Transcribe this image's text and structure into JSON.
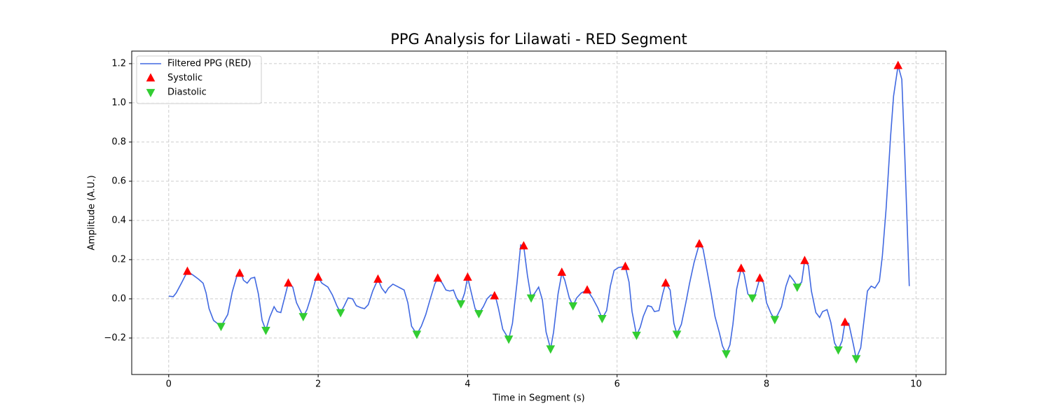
{
  "chart_data": {
    "type": "line",
    "title": "PPG Analysis for Lilawati - RED Segment",
    "x_label": "Time in Segment (s)",
    "y_label": "Amplitude (A.U.)",
    "xlim": [
      -0.495,
      10.4
    ],
    "ylim": [
      -0.386,
      1.264
    ],
    "xticks": [
      0,
      2,
      4,
      6,
      8,
      10
    ],
    "yticks": [
      {
        "value": -0.2,
        "label": "−0.2"
      },
      {
        "value": 0,
        "label": "0.0"
      },
      0.2,
      0.4,
      0.6,
      0.8,
      {
        "value": 1,
        "label": "1.0"
      },
      1.2
    ],
    "grid": true,
    "legend": "upper left",
    "series": [
      {
        "name": "Filtered PPG (RED)",
        "color": "#4169e1",
        "type": "line",
        "x": [
          0,
          0.06,
          0.1,
          0.17,
          0.25,
          0.33,
          0.4,
          0.46,
          0.5,
          0.54,
          0.6,
          0.7,
          0.79,
          0.85,
          0.91,
          0.97,
          1.0,
          1.05,
          1.1,
          1.15,
          1.2,
          1.25,
          1.3,
          1.35,
          1.41,
          1.45,
          1.5,
          1.55,
          1.6,
          1.66,
          1.71,
          1.8,
          1.85,
          1.9,
          1.96,
          2.0,
          2.05,
          2.13,
          2.19,
          2.25,
          2.3,
          2.35,
          2.4,
          2.46,
          2.51,
          2.57,
          2.62,
          2.67,
          2.73,
          2.8,
          2.85,
          2.9,
          2.94,
          3.0,
          3.05,
          3.1,
          3.15,
          3.2,
          3.25,
          3.32,
          3.38,
          3.44,
          3.5,
          3.56,
          3.6,
          3.66,
          3.71,
          3.76,
          3.81,
          3.85,
          3.91,
          3.96,
          4.0,
          4.05,
          4.1,
          4.15,
          4.21,
          4.26,
          4.31,
          4.37,
          4.41,
          4.47,
          4.55,
          4.6,
          4.66,
          4.71,
          4.75,
          4.8,
          4.85,
          4.9,
          4.95,
          5.0,
          5.05,
          5.11,
          5.15,
          5.21,
          5.26,
          5.3,
          5.36,
          5.41,
          5.46,
          5.52,
          5.6,
          5.67,
          5.74,
          5.8,
          5.86,
          5.91,
          5.96,
          6.02,
          6.11,
          6.16,
          6.2,
          6.26,
          6.31,
          6.35,
          6.41,
          6.46,
          6.5,
          6.56,
          6.61,
          6.65,
          6.71,
          6.76,
          6.8,
          6.86,
          6.92,
          6.97,
          7.03,
          7.1,
          7.15,
          7.21,
          7.26,
          7.31,
          7.37,
          7.41,
          7.46,
          7.51,
          7.55,
          7.6,
          7.66,
          7.7,
          7.75,
          7.81,
          7.85,
          7.91,
          7.96,
          8.0,
          8.06,
          8.11,
          8.15,
          8.2,
          8.26,
          8.31,
          8.36,
          8.41,
          8.47,
          8.51,
          8.56,
          8.6,
          8.66,
          8.71,
          8.75,
          8.81,
          8.86,
          8.91,
          8.96,
          9.01,
          9.05,
          9.1,
          9.16,
          9.2,
          9.26,
          9.31,
          9.35,
          9.4,
          9.45,
          9.51,
          9.55,
          9.6,
          9.66,
          9.7,
          9.76,
          9.81,
          9.85,
          9.91
        ],
        "values": [
          0.014,
          0.011,
          0.03,
          0.08,
          0.14,
          0.12,
          0.1,
          0.08,
          0.03,
          -0.05,
          -0.11,
          -0.14,
          -0.08,
          0.035,
          0.115,
          0.13,
          0.095,
          0.08,
          0.105,
          0.11,
          0.025,
          -0.11,
          -0.16,
          -0.095,
          -0.04,
          -0.065,
          -0.07,
          0.005,
          0.08,
          0.06,
          -0.02,
          -0.09,
          -0.055,
          0.005,
          0.09,
          0.11,
          0.08,
          0.06,
          0.02,
          -0.035,
          -0.07,
          -0.035,
          0.005,
          0.0,
          -0.035,
          -0.045,
          -0.05,
          -0.03,
          0.04,
          0.1,
          0.055,
          0.03,
          0.055,
          0.075,
          0.065,
          0.055,
          0.045,
          -0.02,
          -0.14,
          -0.18,
          -0.14,
          -0.08,
          0.0,
          0.075,
          0.105,
          0.08,
          0.045,
          0.04,
          0.045,
          0.005,
          -0.025,
          0.03,
          0.11,
          0.03,
          -0.05,
          -0.075,
          -0.04,
          0.0,
          0.02,
          0.015,
          -0.045,
          -0.155,
          -0.205,
          -0.125,
          0.08,
          0.275,
          0.27,
          0.12,
          0.005,
          0.03,
          0.06,
          -0.005,
          -0.17,
          -0.255,
          -0.17,
          0.025,
          0.13,
          0.095,
          0.005,
          -0.035,
          0.005,
          0.03,
          0.045,
          0.005,
          -0.045,
          -0.1,
          -0.06,
          0.065,
          0.145,
          0.16,
          0.165,
          0.085,
          -0.065,
          -0.185,
          -0.145,
          -0.09,
          -0.035,
          -0.04,
          -0.065,
          -0.06,
          0.025,
          0.08,
          0.045,
          -0.125,
          -0.18,
          -0.13,
          -0.02,
          0.08,
          0.185,
          0.28,
          0.255,
          0.13,
          0.025,
          -0.09,
          -0.175,
          -0.24,
          -0.28,
          -0.235,
          -0.13,
          0.05,
          0.155,
          0.125,
          0.025,
          0.005,
          0.025,
          0.105,
          0.08,
          -0.02,
          -0.075,
          -0.105,
          -0.08,
          -0.04,
          0.065,
          0.12,
          0.095,
          0.065,
          0.085,
          0.195,
          0.17,
          0.04,
          -0.07,
          -0.095,
          -0.065,
          -0.055,
          -0.12,
          -0.225,
          -0.26,
          -0.215,
          -0.12,
          -0.125,
          -0.23,
          -0.305,
          -0.25,
          -0.09,
          0.04,
          0.065,
          0.055,
          0.09,
          0.22,
          0.46,
          0.83,
          1.035,
          1.19,
          1.12,
          0.73,
          0.065
        ]
      },
      {
        "name": "Systolic",
        "color": "#ff0000",
        "type": "scatter",
        "marker": "triangle-up",
        "x": [
          0.25,
          0.95,
          1.6,
          2.0,
          2.8,
          3.6,
          4.0,
          4.36,
          4.75,
          5.26,
          5.6,
          6.11,
          6.65,
          7.1,
          7.66,
          7.91,
          8.51,
          9.05,
          9.76
        ],
        "values": [
          0.14,
          0.13,
          0.08,
          0.11,
          0.1,
          0.105,
          0.11,
          0.015,
          0.27,
          0.135,
          0.045,
          0.165,
          0.08,
          0.28,
          0.155,
          0.105,
          0.195,
          -0.12,
          1.19
        ]
      },
      {
        "name": "Diastolic",
        "color": "#32cd32",
        "type": "scatter",
        "marker": "triangle-down",
        "x": [
          0.7,
          1.3,
          1.8,
          2.3,
          3.32,
          3.91,
          4.15,
          4.55,
          4.85,
          5.11,
          5.41,
          5.8,
          6.26,
          6.8,
          7.46,
          7.81,
          8.11,
          8.41,
          8.96,
          9.2
        ],
        "values": [
          -0.14,
          -0.16,
          -0.09,
          -0.07,
          -0.18,
          -0.025,
          -0.075,
          -0.205,
          0.005,
          -0.255,
          -0.035,
          -0.1,
          -0.185,
          -0.18,
          -0.28,
          0.005,
          -0.105,
          0.06,
          -0.26,
          -0.305
        ]
      }
    ]
  }
}
